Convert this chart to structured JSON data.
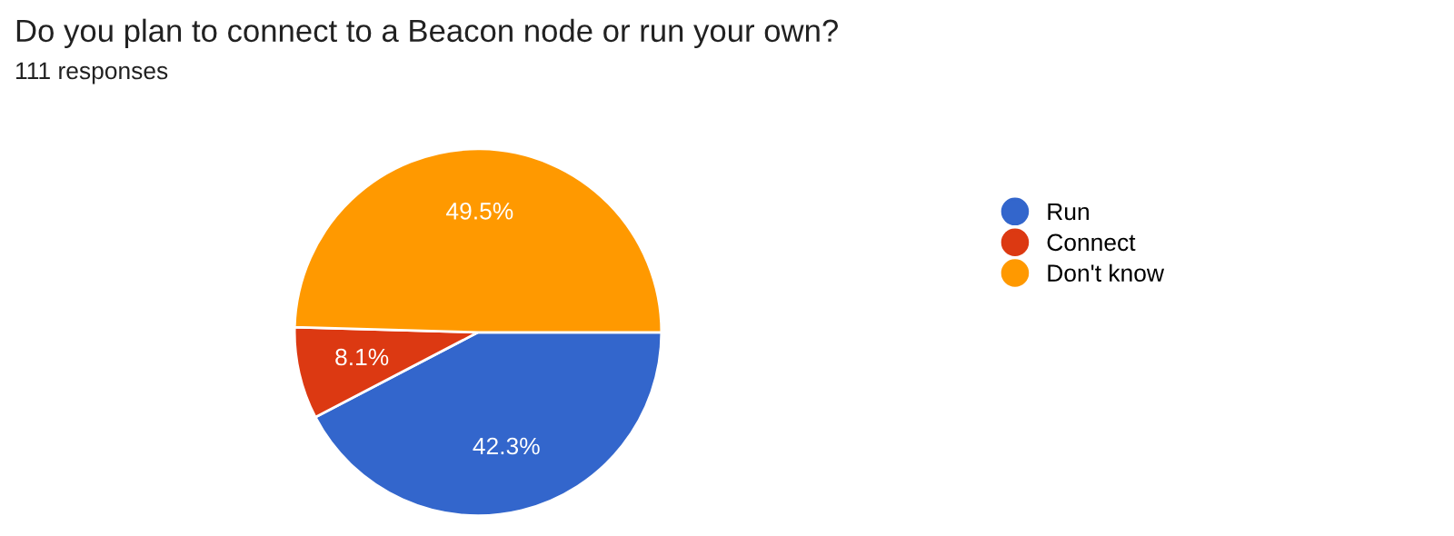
{
  "chart_data": {
    "type": "pie",
    "title": "Do you plan to connect to a Beacon node or run your own?",
    "subtitle": "111 responses",
    "categories": [
      "Run",
      "Connect",
      "Don't know"
    ],
    "values": [
      42.3,
      8.1,
      49.5
    ],
    "colors": [
      "#3366cc",
      "#dc3912",
      "#ff9900"
    ],
    "value_labels": [
      "42.3%",
      "8.1%",
      "49.5%"
    ],
    "legend": "right"
  }
}
